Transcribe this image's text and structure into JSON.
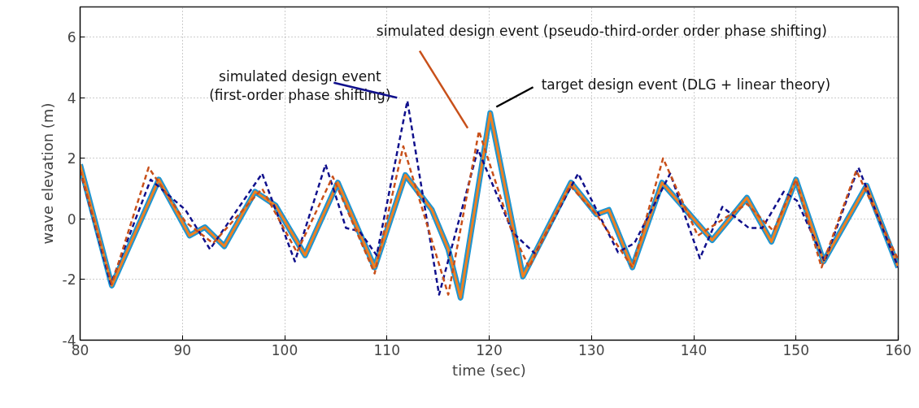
{
  "chart_data": {
    "type": "line",
    "xlabel": "time (sec)",
    "ylabel": "wave elevation (m)",
    "xlim": [
      80,
      160
    ],
    "ylim": [
      -4,
      7
    ],
    "xticks": [
      80,
      90,
      100,
      110,
      120,
      130,
      140,
      150,
      160
    ],
    "yticks": [
      -4,
      -2,
      0,
      2,
      4,
      6
    ],
    "grid": true,
    "series": [
      {
        "color": "#1e96d2",
        "line_style": "solid",
        "x": [
          80,
          83.1,
          87.7,
          90.7,
          92.2,
          94.1,
          97.1,
          99.1,
          102.0,
          105.2,
          108.8,
          111.8,
          114.4,
          116.0,
          117.2,
          120.1,
          123.3,
          128.0,
          130.5,
          131.7,
          134.0,
          136.9,
          141.8,
          145.2,
          147.6,
          150.0,
          152.7,
          156.9,
          160
        ],
        "values": [
          1.8,
          -2.2,
          1.3,
          -0.55,
          -0.27,
          -0.9,
          0.9,
          0.45,
          -1.2,
          1.2,
          -1.6,
          1.45,
          0.3,
          -1.0,
          -2.6,
          3.5,
          -1.9,
          1.2,
          0.15,
          0.3,
          -1.6,
          1.2,
          -0.7,
          0.7,
          -0.75,
          1.3,
          -1.4,
          1.1,
          -1.6
        ]
      },
      {
        "color": "#f08020",
        "line_style": "solid",
        "x": [
          80,
          83.1,
          87.7,
          90.7,
          92.2,
          94.1,
          97.1,
          99.1,
          102.0,
          105.2,
          108.8,
          111.8,
          114.4,
          116.0,
          117.2,
          120.1,
          123.3,
          128.0,
          130.5,
          131.7,
          134.0,
          136.9,
          141.8,
          145.2,
          147.6,
          150.0,
          152.7,
          156.9,
          160
        ],
        "values": [
          1.8,
          -2.2,
          1.3,
          -0.55,
          -0.27,
          -0.9,
          0.9,
          0.45,
          -1.2,
          1.2,
          -1.6,
          1.45,
          0.3,
          -1.0,
          -2.6,
          3.5,
          -1.9,
          1.2,
          0.15,
          0.3,
          -1.6,
          1.2,
          -0.7,
          0.7,
          -0.75,
          1.3,
          -1.4,
          1.1,
          -1.6
        ]
      },
      {
        "color": "#10108c",
        "line_style": "dashed",
        "x": [
          80,
          83.0,
          86.9,
          90.3,
          92.7,
          97.8,
          101.0,
          104.0,
          106.0,
          107.3,
          109.0,
          112.0,
          115.1,
          118.9,
          122.3,
          124.5,
          128.7,
          132.6,
          134.2,
          137.7,
          140.6,
          142.8,
          145.4,
          146.7,
          148.8,
          150.1,
          152.8,
          156.1,
          160
        ],
        "values": [
          1.6,
          -2.15,
          1.3,
          0.3,
          -1.0,
          1.5,
          -1.4,
          1.8,
          -0.3,
          -0.4,
          -1.2,
          3.9,
          -2.5,
          2.3,
          -0.45,
          -1.15,
          1.5,
          -1.1,
          -0.8,
          1.5,
          -1.3,
          0.4,
          -0.3,
          -0.3,
          0.9,
          0.6,
          -1.4,
          1.7,
          -1.6
        ]
      },
      {
        "color": "#c8501a",
        "line_style": "dashed",
        "x": [
          80,
          83.1,
          86.7,
          90.3,
          93.0,
          97.8,
          101.2,
          104.7,
          108.8,
          111.6,
          116.0,
          119.0,
          122.1,
          123.9,
          127.9,
          130.5,
          134.0,
          137.0,
          140.4,
          145.2,
          147.8,
          150.0,
          152.5,
          155.9,
          160
        ],
        "values": [
          1.6,
          -2.15,
          1.7,
          -0.1,
          -0.8,
          1.0,
          -1.1,
          1.4,
          -1.8,
          2.4,
          -2.5,
          2.9,
          -0.3,
          -1.6,
          1.1,
          0.15,
          -1.6,
          2.0,
          -0.55,
          0.5,
          -0.4,
          1.3,
          -1.6,
          1.6,
          -1.35
        ]
      }
    ],
    "annotations": [
      "simulated design event\n(first-order phase shifting)",
      "simulated design event (pseudo-third-order order phase shifting)",
      "target design event (DLG + linear theory)"
    ]
  }
}
